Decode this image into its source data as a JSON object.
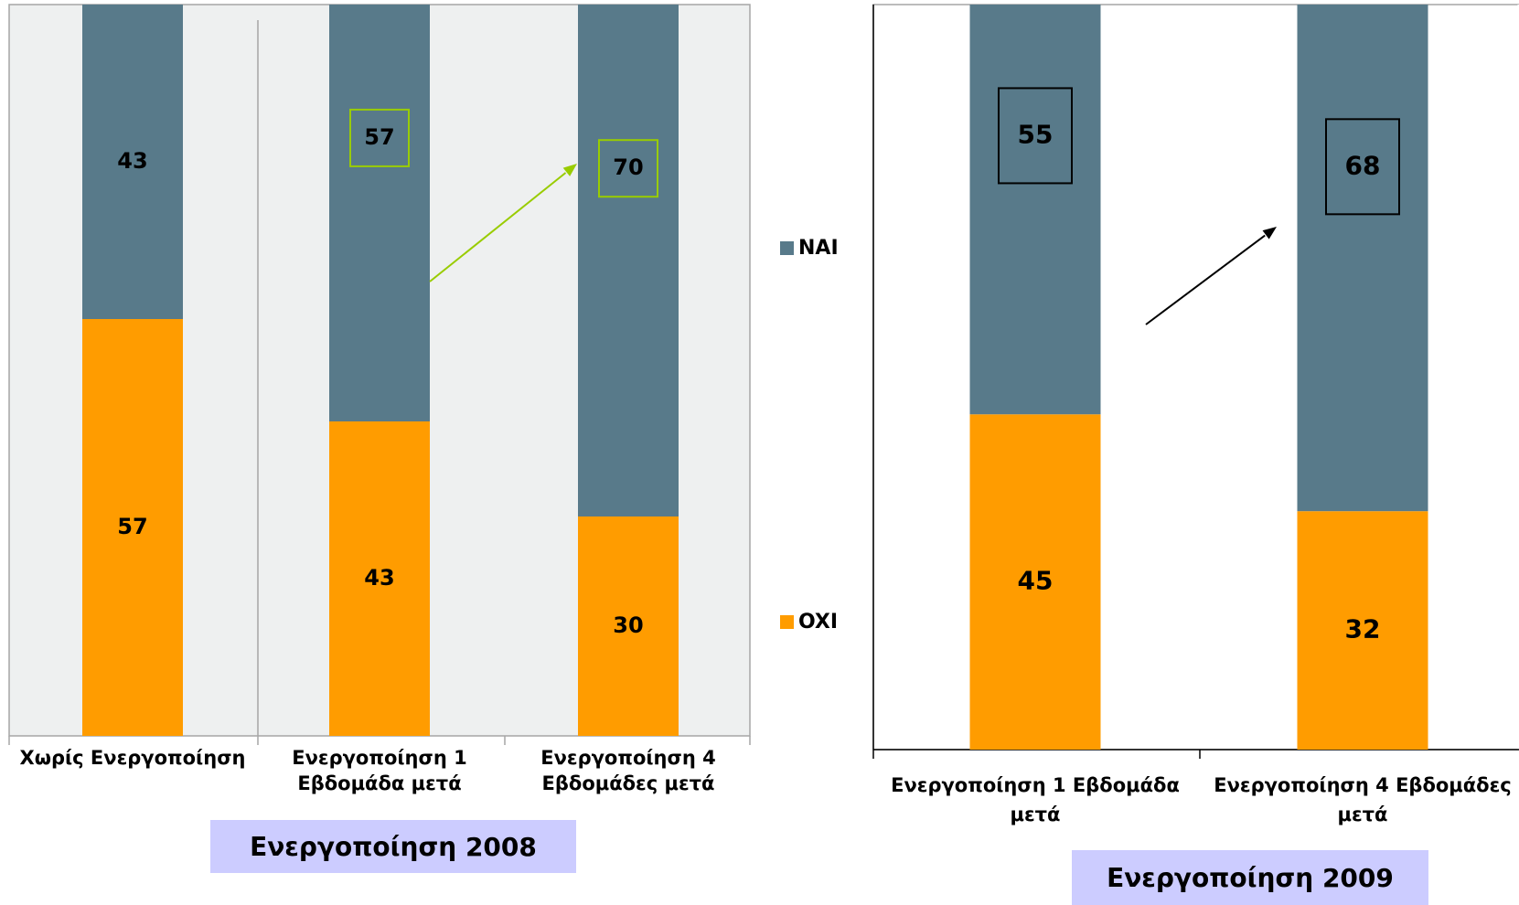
{
  "colors": {
    "nai": "#587A8A",
    "oxi": "#FF9C00",
    "panel_left_bg": "#EEF0F0",
    "arrow_left": "#99CC00",
    "arrow_right": "#000000",
    "caption_bg": "#CCCCFF"
  },
  "legend": {
    "nai": "NAI",
    "oxi": "OXI"
  },
  "chart_data": [
    {
      "type": "bar",
      "stacked": true,
      "categories": [
        "Χωρίς Ενεργοποίηση",
        "Ενεργοποίηση 1 Εβδομάδα μετά",
        "Ενεργοποίηση 4 Εβδομάδες μετά"
      ],
      "series": [
        {
          "name": "OXI",
          "values": [
            57,
            43,
            30
          ]
        },
        {
          "name": "NAI",
          "values": [
            43,
            57,
            70
          ]
        }
      ],
      "ylim": [
        0,
        100
      ],
      "caption": "Ενεργοποίηση 2008",
      "highlighted": [
        1,
        2
      ]
    },
    {
      "type": "bar",
      "stacked": true,
      "categories": [
        "Ενεργοποίηση 1 Εβδομάδα μετά",
        "Ενεργοποίηση 4 Εβδομάδες μετά"
      ],
      "series": [
        {
          "name": "OXI",
          "values": [
            45,
            32
          ]
        },
        {
          "name": "NAI",
          "values": [
            55,
            68
          ]
        }
      ],
      "ylim": [
        0,
        100
      ],
      "caption": "Ενεργοποίηση 2009",
      "highlighted": [
        0,
        1
      ]
    }
  ]
}
